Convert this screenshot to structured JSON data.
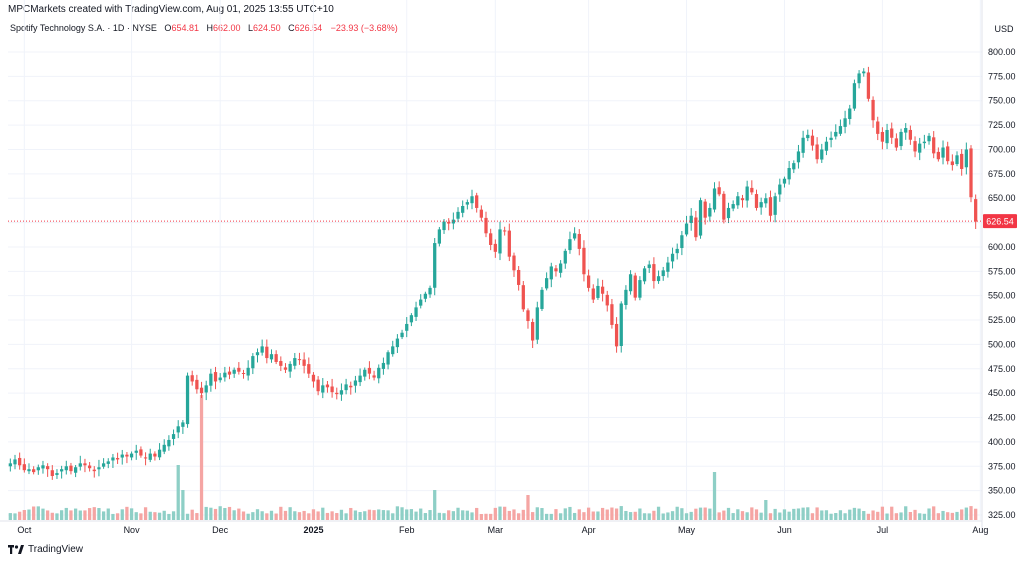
{
  "header": {
    "text": "MPCMarkets created with TradingView.com, Aug 01, 2025 13:55 UTC+10"
  },
  "symbol": {
    "name": "Spotify Technology S.A. · 1D · NYSE",
    "o_label": "O",
    "o_value": "654.81",
    "h_label": "H",
    "h_value": "662.00",
    "l_label": "L",
    "l_value": "624.50",
    "c_label": "C",
    "c_value": "626.54",
    "change": "−23.93 (−3.68%)"
  },
  "footer": {
    "brand": "TradingView"
  },
  "colors": {
    "up": "#26a69a",
    "down": "#ef5350",
    "up_vol": "#8ecfc6",
    "down_vol": "#f5a5a3",
    "grid": "#f0f3fa",
    "price_line": "#f23645"
  },
  "chart_data": {
    "type": "candlestick",
    "currency_label": "USD",
    "ylim": [
      315,
      820
    ],
    "y_ticks": [
      325,
      350,
      375,
      400,
      425,
      450,
      475,
      500,
      525,
      550,
      575,
      600,
      625,
      650,
      675,
      700,
      725,
      750,
      775,
      800
    ],
    "y_tick_labels": [
      "325.00",
      "350.00",
      "375.00",
      "400.00",
      "425.00",
      "450.00",
      "475.00",
      "500.00",
      "525.00",
      "550.00",
      "575.00",
      "600.00",
      "625.00",
      "650.00",
      "675.00",
      "700.00",
      "725.00",
      "750.00",
      "775.00",
      "800.00"
    ],
    "x_labels": [
      {
        "label": "Oct",
        "index": 3
      },
      {
        "label": "Nov",
        "index": 26
      },
      {
        "label": "Dec",
        "index": 45
      },
      {
        "label": "2025",
        "index": 65
      },
      {
        "label": "Feb",
        "index": 85
      },
      {
        "label": "Mar",
        "index": 104
      },
      {
        "label": "Apr",
        "index": 124
      },
      {
        "label": "May",
        "index": 145
      },
      {
        "label": "Jun",
        "index": 166
      },
      {
        "label": "Jul",
        "index": 187
      },
      {
        "label": "Aug",
        "index": 208
      }
    ],
    "last_price": 626.54,
    "last_price_label": "626.54",
    "closes": [
      378,
      382,
      376,
      371,
      372,
      369,
      374,
      376,
      372,
      365,
      368,
      372,
      375,
      370,
      374,
      378,
      376,
      373,
      370,
      374,
      378,
      380,
      384,
      382,
      387,
      385,
      388,
      391,
      386,
      383,
      388,
      385,
      392,
      397,
      402,
      408,
      416,
      420,
      468,
      462,
      454,
      450,
      458,
      470,
      462,
      466,
      471,
      469,
      474,
      472,
      470,
      476,
      488,
      492,
      498,
      486,
      490,
      482,
      478,
      474,
      480,
      486,
      484,
      478,
      470,
      462,
      452,
      458,
      456,
      451,
      449,
      453,
      459,
      456,
      463,
      468,
      474,
      470,
      466,
      476,
      481,
      492,
      498,
      506,
      512,
      521,
      530,
      538,
      546,
      552,
      558,
      604,
      618,
      626,
      624,
      628,
      636,
      642,
      646,
      652,
      640,
      630,
      614,
      602,
      595,
      618,
      616,
      590,
      576,
      561,
      536,
      524,
      504,
      538,
      556,
      568,
      580,
      575,
      583,
      596,
      608,
      614,
      598,
      572,
      558,
      546,
      560,
      552,
      540,
      520,
      498,
      542,
      556,
      572,
      548,
      566,
      578,
      582,
      565,
      570,
      576,
      584,
      593,
      598,
      612,
      624,
      632,
      610,
      648,
      630,
      640,
      660,
      654,
      628,
      640,
      644,
      652,
      648,
      662,
      656,
      640,
      646,
      650,
      632,
      652,
      664,
      670,
      681,
      686,
      698,
      712,
      715,
      704,
      690,
      700,
      708,
      712,
      718,
      724,
      732,
      742,
      768,
      778,
      780,
      752,
      730,
      716,
      708,
      720,
      712,
      702,
      718,
      722,
      710,
      698,
      706,
      708,
      714,
      696,
      690,
      702,
      688,
      684,
      694,
      680,
      700,
      651,
      626
    ]
  }
}
